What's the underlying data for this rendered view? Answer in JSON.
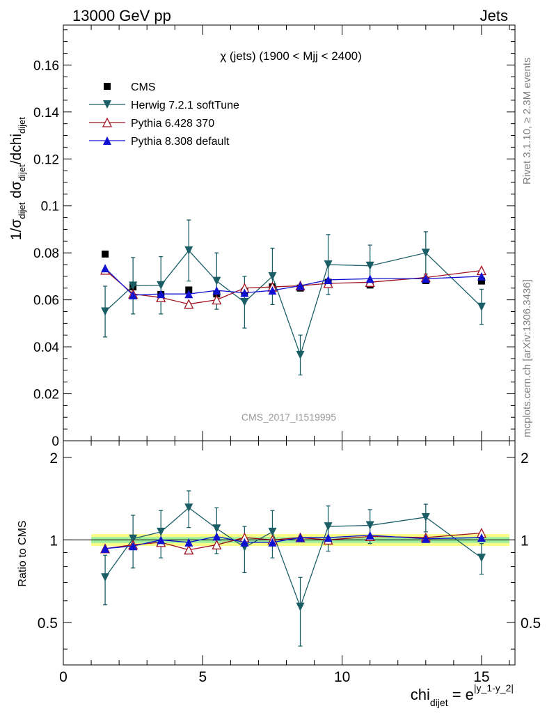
{
  "header": {
    "left": "13000 GeV pp",
    "right": "Jets"
  },
  "side_labels": {
    "rivet": "Rivet 3.1.10, ≥ 2.3M events",
    "mcplots": "mcplots.cern.ch [arXiv:1306.3436]"
  },
  "watermark": "CMS_2017_I1519995",
  "colors": {
    "CMS": "#000000",
    "Herwig": "#1b5e66",
    "Pythia6": "#a01020",
    "Pythia8": "#1010d0",
    "band_inner": "#9ff09f",
    "band_outer": "#fbfb88"
  },
  "chart_data": [
    {
      "type": "line",
      "title": "χ (jets) (1900 < Mjj < 2400)",
      "ylabel": "1/σdijet dσdijet/dchidijet",
      "xlim": [
        0,
        16.2
      ],
      "ylim": [
        0,
        0.177
      ],
      "y_ticks": [
        "0",
        "0.02",
        "0.04",
        "0.06",
        "0.08",
        "0.1",
        "0.12",
        "0.14",
        "0.16"
      ],
      "legend_position": "top-left",
      "x": [
        1.5,
        2.5,
        3.5,
        4.5,
        5.5,
        6.5,
        7.5,
        8.5,
        9.5,
        11.0,
        13.0,
        15.0
      ],
      "bins": [
        [
          1,
          2
        ],
        [
          2,
          3
        ],
        [
          3,
          4
        ],
        [
          4,
          5
        ],
        [
          5,
          6
        ],
        [
          6,
          7
        ],
        [
          7,
          8
        ],
        [
          8,
          9
        ],
        [
          9,
          10
        ],
        [
          10,
          12
        ],
        [
          12,
          14
        ],
        [
          14,
          16
        ]
      ],
      "series": [
        {
          "name": "CMS",
          "marker": "square",
          "values": [
            0.0795,
            0.0655,
            0.0623,
            0.0642,
            0.0625,
            0.0635,
            0.0655,
            0.065,
            0.0675,
            0.0663,
            0.0682,
            0.068
          ]
        },
        {
          "name": "Herwig 7.2.1 softTune",
          "marker": "triangle-down",
          "values": [
            0.055,
            0.066,
            0.0662,
            0.081,
            0.068,
            0.059,
            0.07,
            0.0365,
            0.075,
            0.0745,
            0.08,
            0.057
          ],
          "errors": [
            0.0108,
            0.012,
            0.0122,
            0.013,
            0.012,
            0.011,
            0.012,
            0.0085,
            0.0128,
            0.0088,
            0.009,
            0.0075
          ]
        },
        {
          "name": "Pythia 6.428 370",
          "marker": "triangle-open",
          "values": [
            0.0727,
            0.0625,
            0.061,
            0.0582,
            0.06,
            0.065,
            0.0655,
            0.066,
            0.067,
            0.0675,
            0.0695,
            0.0725
          ]
        },
        {
          "name": "Pythia 8.308 default",
          "marker": "triangle-up",
          "values": [
            0.0735,
            0.062,
            0.0625,
            0.0625,
            0.064,
            0.063,
            0.064,
            0.066,
            0.0685,
            0.069,
            0.069,
            0.07
          ]
        }
      ]
    },
    {
      "type": "line",
      "ylabel": "Ratio to CMS",
      "xlabel": "chidijet = e|y_1-y_2|",
      "ylim": [
        0.35,
        2.3
      ],
      "y_ticks": [
        "0.5",
        "1",
        "2"
      ],
      "x_ticks": [
        "0",
        "5",
        "10",
        "15"
      ],
      "band": {
        "inner": 0.025,
        "outer": 0.05
      },
      "series": [
        {
          "name": "Herwig 7.2.1 softTune",
          "values": [
            0.73,
            1.01,
            1.07,
            1.31,
            1.1,
            0.94,
            1.07,
            0.57,
            1.12,
            1.13,
            1.21,
            0.86
          ],
          "errors": [
            0.15,
            0.22,
            0.21,
            0.2,
            0.21,
            0.18,
            0.21,
            0.16,
            0.21,
            0.16,
            0.14,
            0.11
          ]
        },
        {
          "name": "Pythia 6.428 370",
          "values": [
            0.93,
            0.96,
            0.98,
            0.92,
            0.96,
            1.02,
            1.0,
            1.02,
            1.0,
            1.03,
            1.02,
            1.06
          ]
        },
        {
          "name": "Pythia 8.308 default",
          "values": [
            0.93,
            0.95,
            1.0,
            0.98,
            1.03,
            0.98,
            0.98,
            1.02,
            1.02,
            1.04,
            1.01,
            1.02
          ]
        }
      ]
    }
  ]
}
